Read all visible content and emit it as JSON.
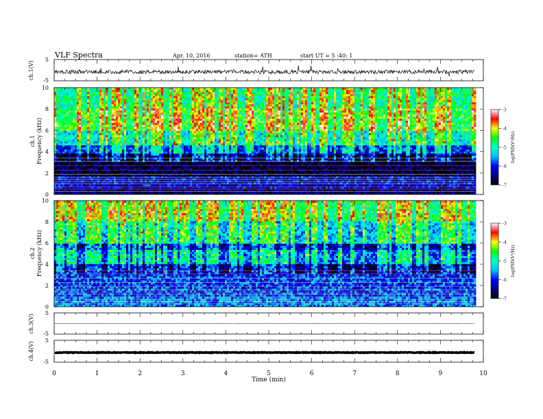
{
  "header": {
    "title": "VLF Spectra",
    "date": "Apr. 10, 2016",
    "station": "station= ATH",
    "start": "start  UT =   5  :40: 1"
  },
  "colorbar": {
    "label": "log(PSD(V²/Hz)",
    "ticks": [
      "-7",
      "-6",
      "-5",
      "-4",
      "-3"
    ],
    "range": [
      -7,
      -3
    ],
    "colors": [
      "#000000",
      "#00008b",
      "#0000ff",
      "#00bfff",
      "#00ffcc",
      "#00ff00",
      "#ffff00",
      "#ff0000",
      "#ffffff"
    ]
  },
  "chart_data": [
    {
      "type": "line",
      "panel": "ch1-waveform",
      "ylabel": "ch.1(V)",
      "ylim": [
        -5,
        5
      ],
      "ytick_labels": [
        "5",
        "-5"
      ],
      "baseline": -0.8
    },
    {
      "type": "heatmap",
      "panel": "ch1-spectrogram",
      "ylabel": "ch.1",
      "ylabel2": "Frequency (kHz)",
      "ylim": [
        0,
        10
      ],
      "ytick_labels": [
        "0",
        "2",
        "4",
        "6",
        "8",
        "10"
      ],
      "bands": [
        {
          "from": 0.0,
          "to": 0.5,
          "level": -6.6
        },
        {
          "from": 0.5,
          "to": 1.8,
          "level": -6.2
        },
        {
          "from": 1.8,
          "to": 3.8,
          "level": -6.8
        },
        {
          "from": 3.8,
          "to": 4.6,
          "level": -6.0
        },
        {
          "from": 4.6,
          "to": 6.0,
          "level": -5.2
        },
        {
          "from": 6.0,
          "to": 8.0,
          "level": -4.6
        },
        {
          "from": 8.0,
          "to": 10.0,
          "level": -4.9
        }
      ]
    },
    {
      "type": "heatmap",
      "panel": "ch2-spectrogram",
      "ylabel": "ch.2",
      "ylabel2": "Frequency (kHz)",
      "ylim": [
        0,
        10
      ],
      "ytick_labels": [
        "0",
        "2",
        "4",
        "6",
        "8",
        "10"
      ],
      "bands": [
        {
          "from": 0.0,
          "to": 1.0,
          "level": -5.6
        },
        {
          "from": 1.0,
          "to": 3.0,
          "level": -5.9
        },
        {
          "from": 3.0,
          "to": 4.0,
          "level": -6.7
        },
        {
          "from": 4.0,
          "to": 5.3,
          "level": -5.8
        },
        {
          "from": 5.3,
          "to": 6.0,
          "level": -6.5
        },
        {
          "from": 6.0,
          "to": 8.0,
          "level": -5.4
        },
        {
          "from": 8.0,
          "to": 10.0,
          "level": -4.8
        }
      ]
    },
    {
      "type": "line",
      "panel": "ch3-waveform",
      "ylabel": "ch.3(V)",
      "ylim": [
        -5,
        5
      ],
      "ytick_labels": [
        "5",
        "-5"
      ],
      "baseline": 0.0
    },
    {
      "type": "line",
      "panel": "ch4-waveform",
      "ylabel": "ch.4(V)",
      "ylim": [
        -5,
        5
      ],
      "ytick_labels": [
        "5",
        "-5"
      ],
      "baseline": -0.6
    }
  ],
  "xaxis": {
    "label": "Time (min)",
    "range": [
      0,
      10
    ],
    "tick_labels": [
      "0",
      "1",
      "2",
      "3",
      "4",
      "5",
      "6",
      "7",
      "8",
      "9",
      "10"
    ],
    "data_end": 9.8
  }
}
